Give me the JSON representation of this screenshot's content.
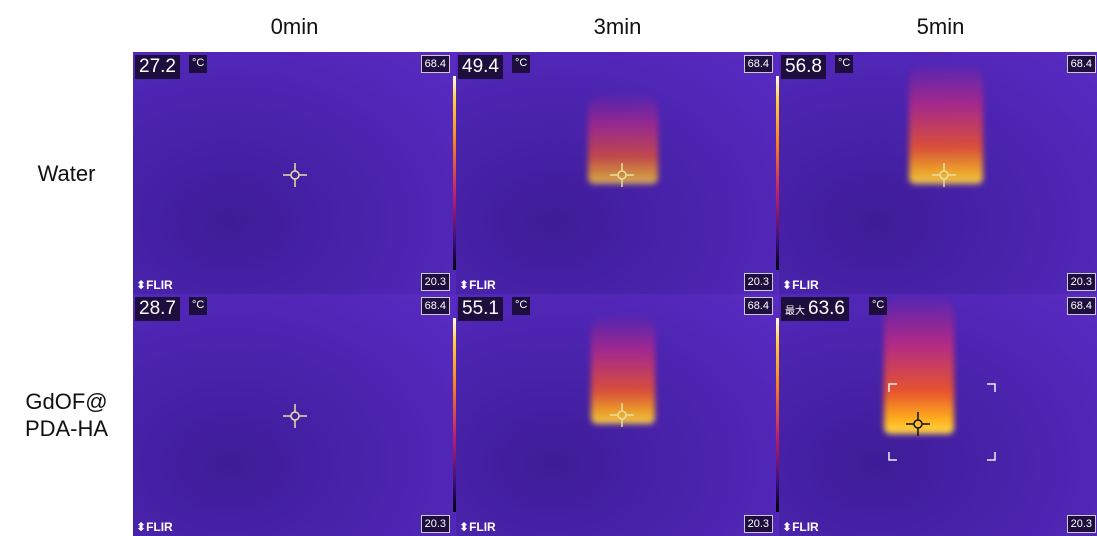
{
  "columns": [
    "0min",
    "3min",
    "5min"
  ],
  "unit": "°C",
  "logo": "FLIR",
  "rows": [
    {
      "label": "Water",
      "panels": [
        {
          "temperature": 27.2,
          "scale_max": 68.4,
          "scale_min": 20.3
        },
        {
          "temperature": 49.4,
          "scale_max": 68.4,
          "scale_min": 20.3
        },
        {
          "temperature": 56.8,
          "scale_max": 68.4,
          "scale_min": 20.3
        }
      ]
    },
    {
      "label": "GdOF@\nPDA-HA",
      "panels": [
        {
          "temperature": 28.7,
          "scale_max": 68.4,
          "scale_min": 20.3
        },
        {
          "temperature": 55.1,
          "scale_max": 68.4,
          "scale_min": 20.3
        },
        {
          "prefix": "最大",
          "temperature": 63.6,
          "scale_max": 68.4,
          "scale_min": 20.3
        }
      ]
    }
  ]
}
